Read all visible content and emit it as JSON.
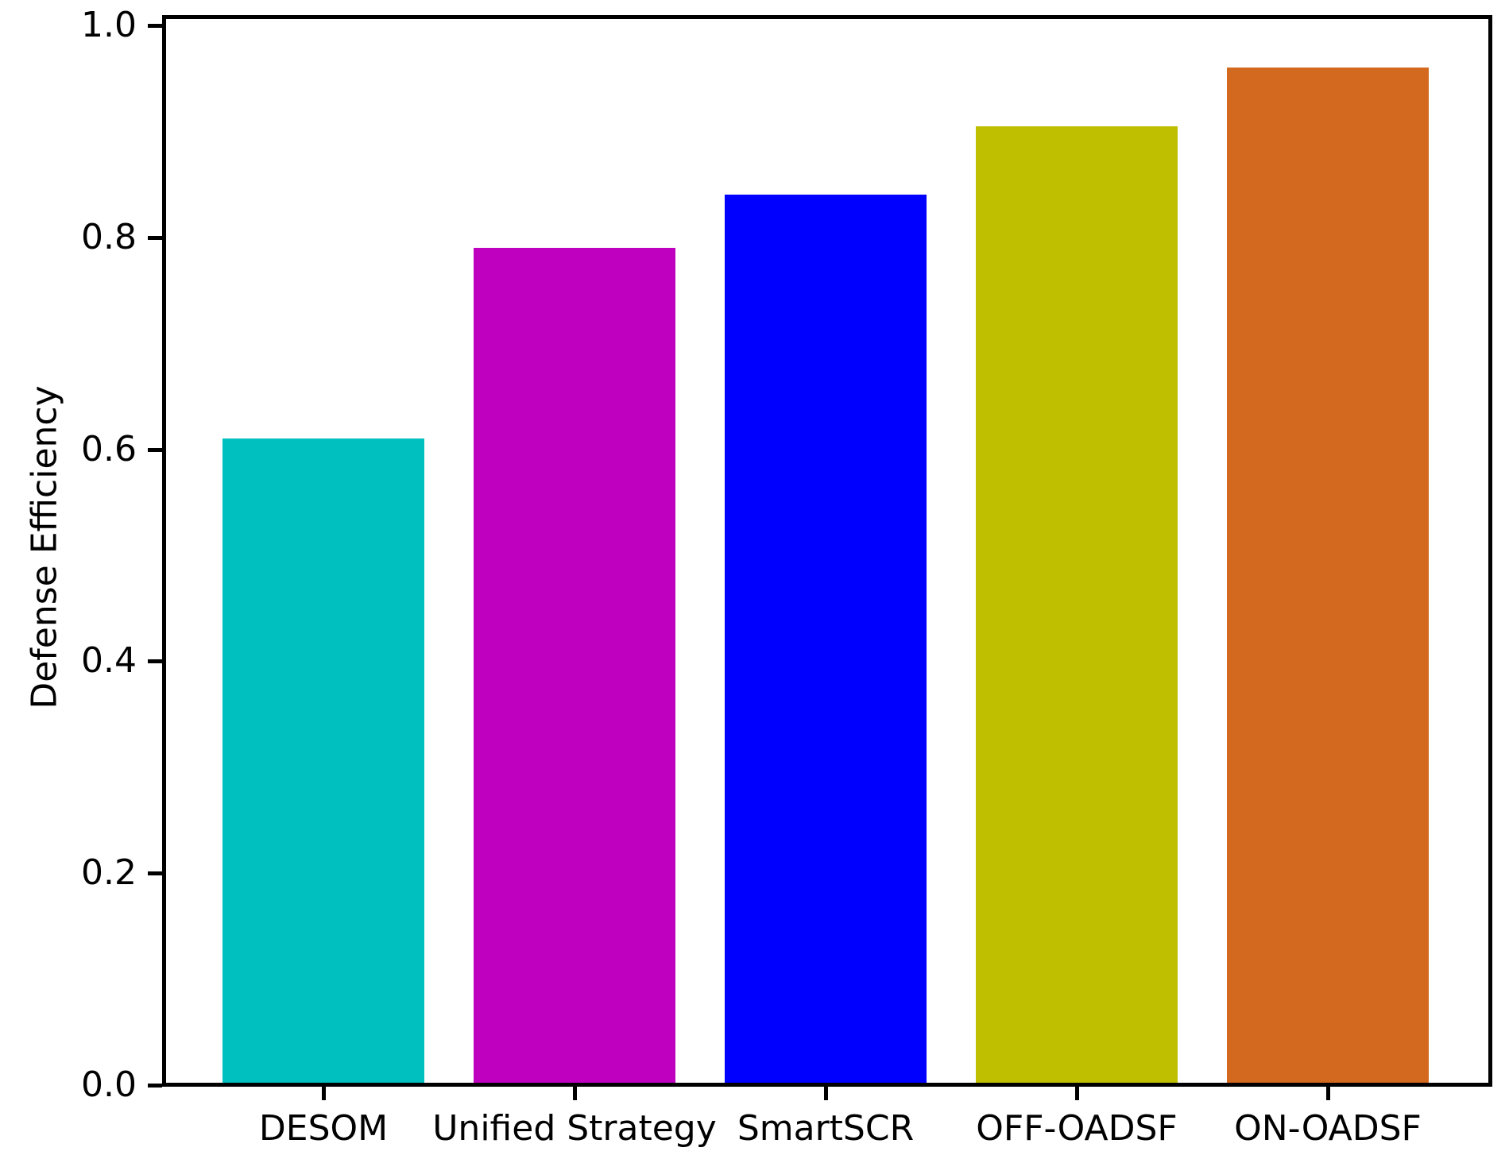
{
  "chart_data": {
    "type": "bar",
    "title": "",
    "xlabel": "",
    "ylabel": "Defense Efficiency",
    "categories": [
      "DESOM",
      "Unified Strategy",
      "SmartSCR",
      "OFF-OADSF",
      "ON-OADSF"
    ],
    "values": [
      0.61,
      0.79,
      0.84,
      0.905,
      0.96
    ],
    "bar_colors": [
      "#00bfbf",
      "#bf00bf",
      "#0000ff",
      "#bfbf00",
      "#d2691e"
    ],
    "ylim": [
      0.0,
      1.0
    ],
    "yticks": [
      0.0,
      0.2,
      0.4,
      0.6,
      0.8,
      1.0
    ],
    "ytick_labels": [
      "0.0",
      "0.2",
      "0.4",
      "0.6",
      "0.8",
      "1.0"
    ],
    "grid": false,
    "legend": "none",
    "background_color": "#ffffff",
    "axis_color": "#000000",
    "text_color": "#000000"
  }
}
